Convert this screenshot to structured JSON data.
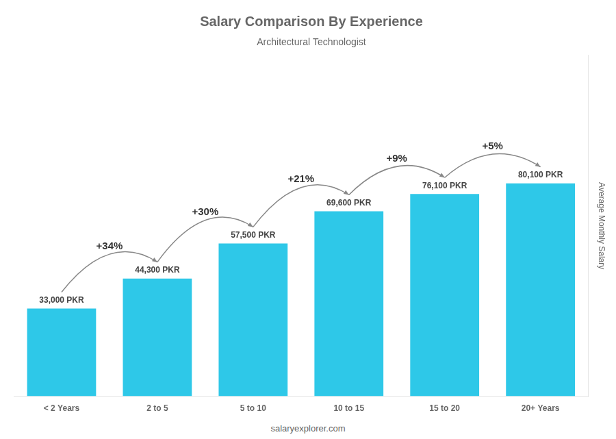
{
  "chart_data": {
    "type": "bar",
    "title": "Salary Comparison By Experience",
    "subtitle": "Architectural Technologist",
    "source": "salaryexplorer.com",
    "ylabel": "Average Monthly Salary",
    "categories": [
      "< 2 Years",
      "2 to 5",
      "5 to 10",
      "10 to 15",
      "15 to 20",
      "20+ Years"
    ],
    "values": [
      33000,
      44300,
      57500,
      69600,
      76100,
      80100
    ],
    "value_labels": [
      "33,000 PKR",
      "44,300 PKR",
      "57,500 PKR",
      "69,600 PKR",
      "76,100 PKR",
      "80,100 PKR"
    ],
    "data_labels": true,
    "annotations": [
      "+34%",
      "+30%",
      "+21%",
      "+9%",
      "+5%"
    ],
    "color": "#2ec8e8",
    "ylim": [
      0,
      128250
    ],
    "tick_labels": "x",
    "grid": false
  }
}
